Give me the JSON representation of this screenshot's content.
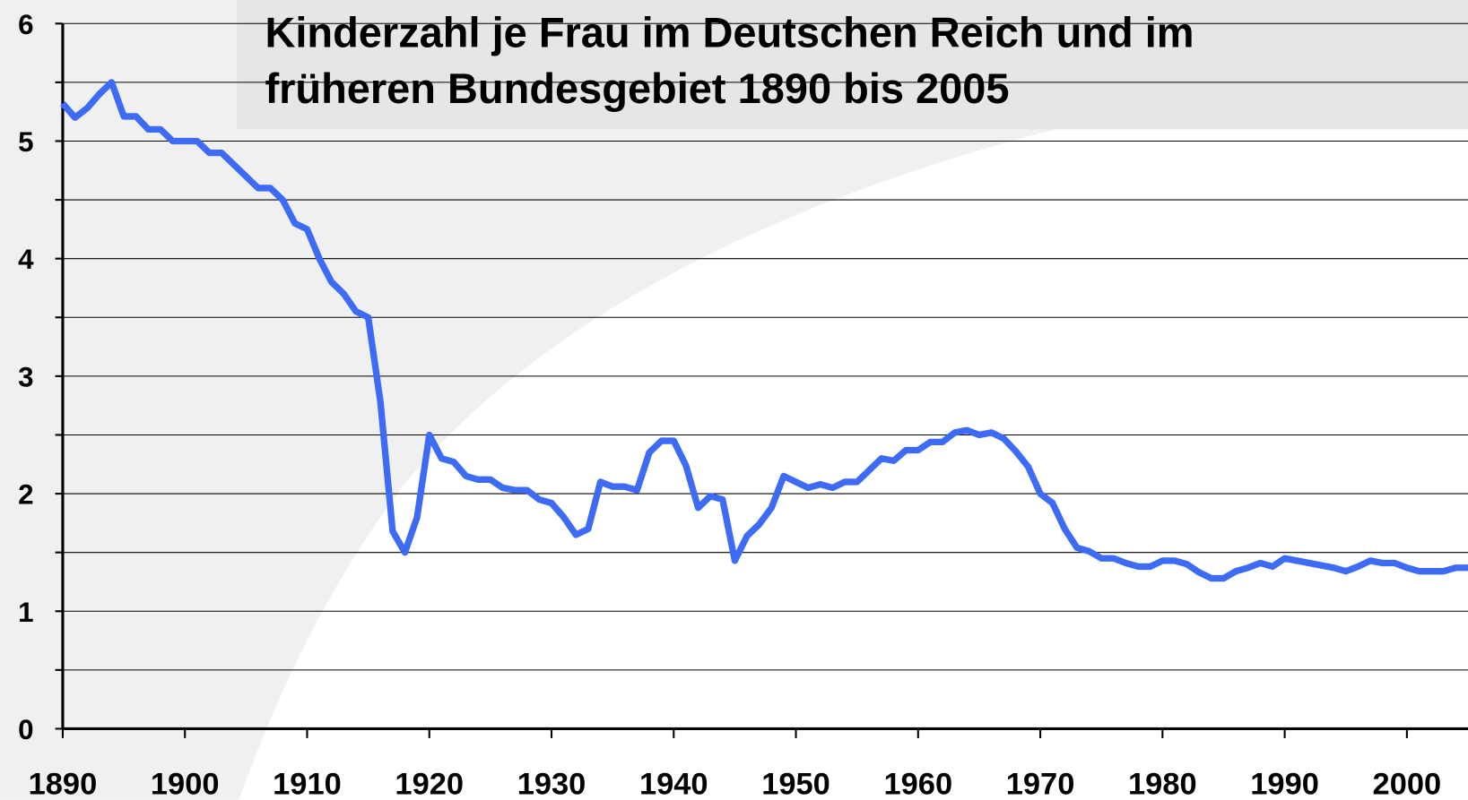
{
  "chart_data": {
    "type": "line",
    "title": [
      "Kinderzahl je Frau im Deutschen Reich und im",
      "früheren Bundesgebiet 1890 bis 2005"
    ],
    "x": [
      1890,
      1891,
      1892,
      1893,
      1894,
      1895,
      1896,
      1897,
      1898,
      1899,
      1900,
      1901,
      1902,
      1903,
      1904,
      1905,
      1906,
      1907,
      1908,
      1909,
      1910,
      1911,
      1912,
      1913,
      1914,
      1915,
      1916,
      1917,
      1918,
      1919,
      1920,
      1921,
      1922,
      1923,
      1924,
      1925,
      1926,
      1927,
      1928,
      1929,
      1930,
      1931,
      1932,
      1933,
      1934,
      1935,
      1936,
      1937,
      1938,
      1939,
      1940,
      1941,
      1942,
      1943,
      1944,
      1945,
      1946,
      1947,
      1948,
      1949,
      1950,
      1951,
      1952,
      1953,
      1954,
      1955,
      1956,
      1957,
      1958,
      1959,
      1960,
      1961,
      1962,
      1963,
      1964,
      1965,
      1966,
      1967,
      1968,
      1969,
      1970,
      1971,
      1972,
      1973,
      1974,
      1975,
      1976,
      1977,
      1978,
      1979,
      1980,
      1981,
      1982,
      1983,
      1984,
      1985,
      1986,
      1987,
      1988,
      1989,
      1990,
      1991,
      1992,
      1993,
      1994,
      1995,
      1996,
      1997,
      1998,
      1999,
      2000,
      2001,
      2002,
      2003,
      2004,
      2005
    ],
    "series": [
      {
        "color": "#3d6bf5",
        "values": [
          5.32,
          5.2,
          5.28,
          5.4,
          5.5,
          5.21,
          5.21,
          5.1,
          5.1,
          5.0,
          5.0,
          5.0,
          4.9,
          4.9,
          4.8,
          4.7,
          4.6,
          4.6,
          4.5,
          4.3,
          4.25,
          4.0,
          3.8,
          3.7,
          3.55,
          3.5,
          2.78,
          1.68,
          1.5,
          1.8,
          2.5,
          2.3,
          2.27,
          2.15,
          2.12,
          2.12,
          2.05,
          2.03,
          2.03,
          1.95,
          1.92,
          1.8,
          1.65,
          1.7,
          2.1,
          2.06,
          2.06,
          2.03,
          2.35,
          2.45,
          2.45,
          2.24,
          1.88,
          1.98,
          1.95,
          1.43,
          1.64,
          1.74,
          1.88,
          2.15,
          2.1,
          2.05,
          2.08,
          2.05,
          2.1,
          2.1,
          2.2,
          2.3,
          2.28,
          2.37,
          2.37,
          2.44,
          2.44,
          2.52,
          2.54,
          2.5,
          2.52,
          2.47,
          2.36,
          2.23,
          2.0,
          1.92,
          1.7,
          1.54,
          1.51,
          1.45,
          1.45,
          1.41,
          1.38,
          1.38,
          1.43,
          1.43,
          1.4,
          1.33,
          1.28,
          1.28,
          1.34,
          1.37,
          1.41,
          1.38,
          1.45,
          1.43,
          1.41,
          1.39,
          1.37,
          1.34,
          1.38,
          1.43,
          1.41,
          1.41,
          1.37,
          1.34,
          1.34,
          1.34,
          1.37,
          1.37
        ]
      }
    ],
    "xlim": [
      1890,
      2005
    ],
    "xticks": [
      1890,
      1900,
      1910,
      1920,
      1930,
      1940,
      1950,
      1960,
      1970,
      1980,
      1990,
      2000
    ],
    "ylim": [
      0,
      6
    ],
    "yticks": [
      0,
      1,
      2,
      3,
      4,
      5,
      6
    ],
    "minor_yticks": [
      0.5,
      1.5,
      2.5,
      3.5,
      4.5,
      5.5
    ],
    "grid": true
  }
}
